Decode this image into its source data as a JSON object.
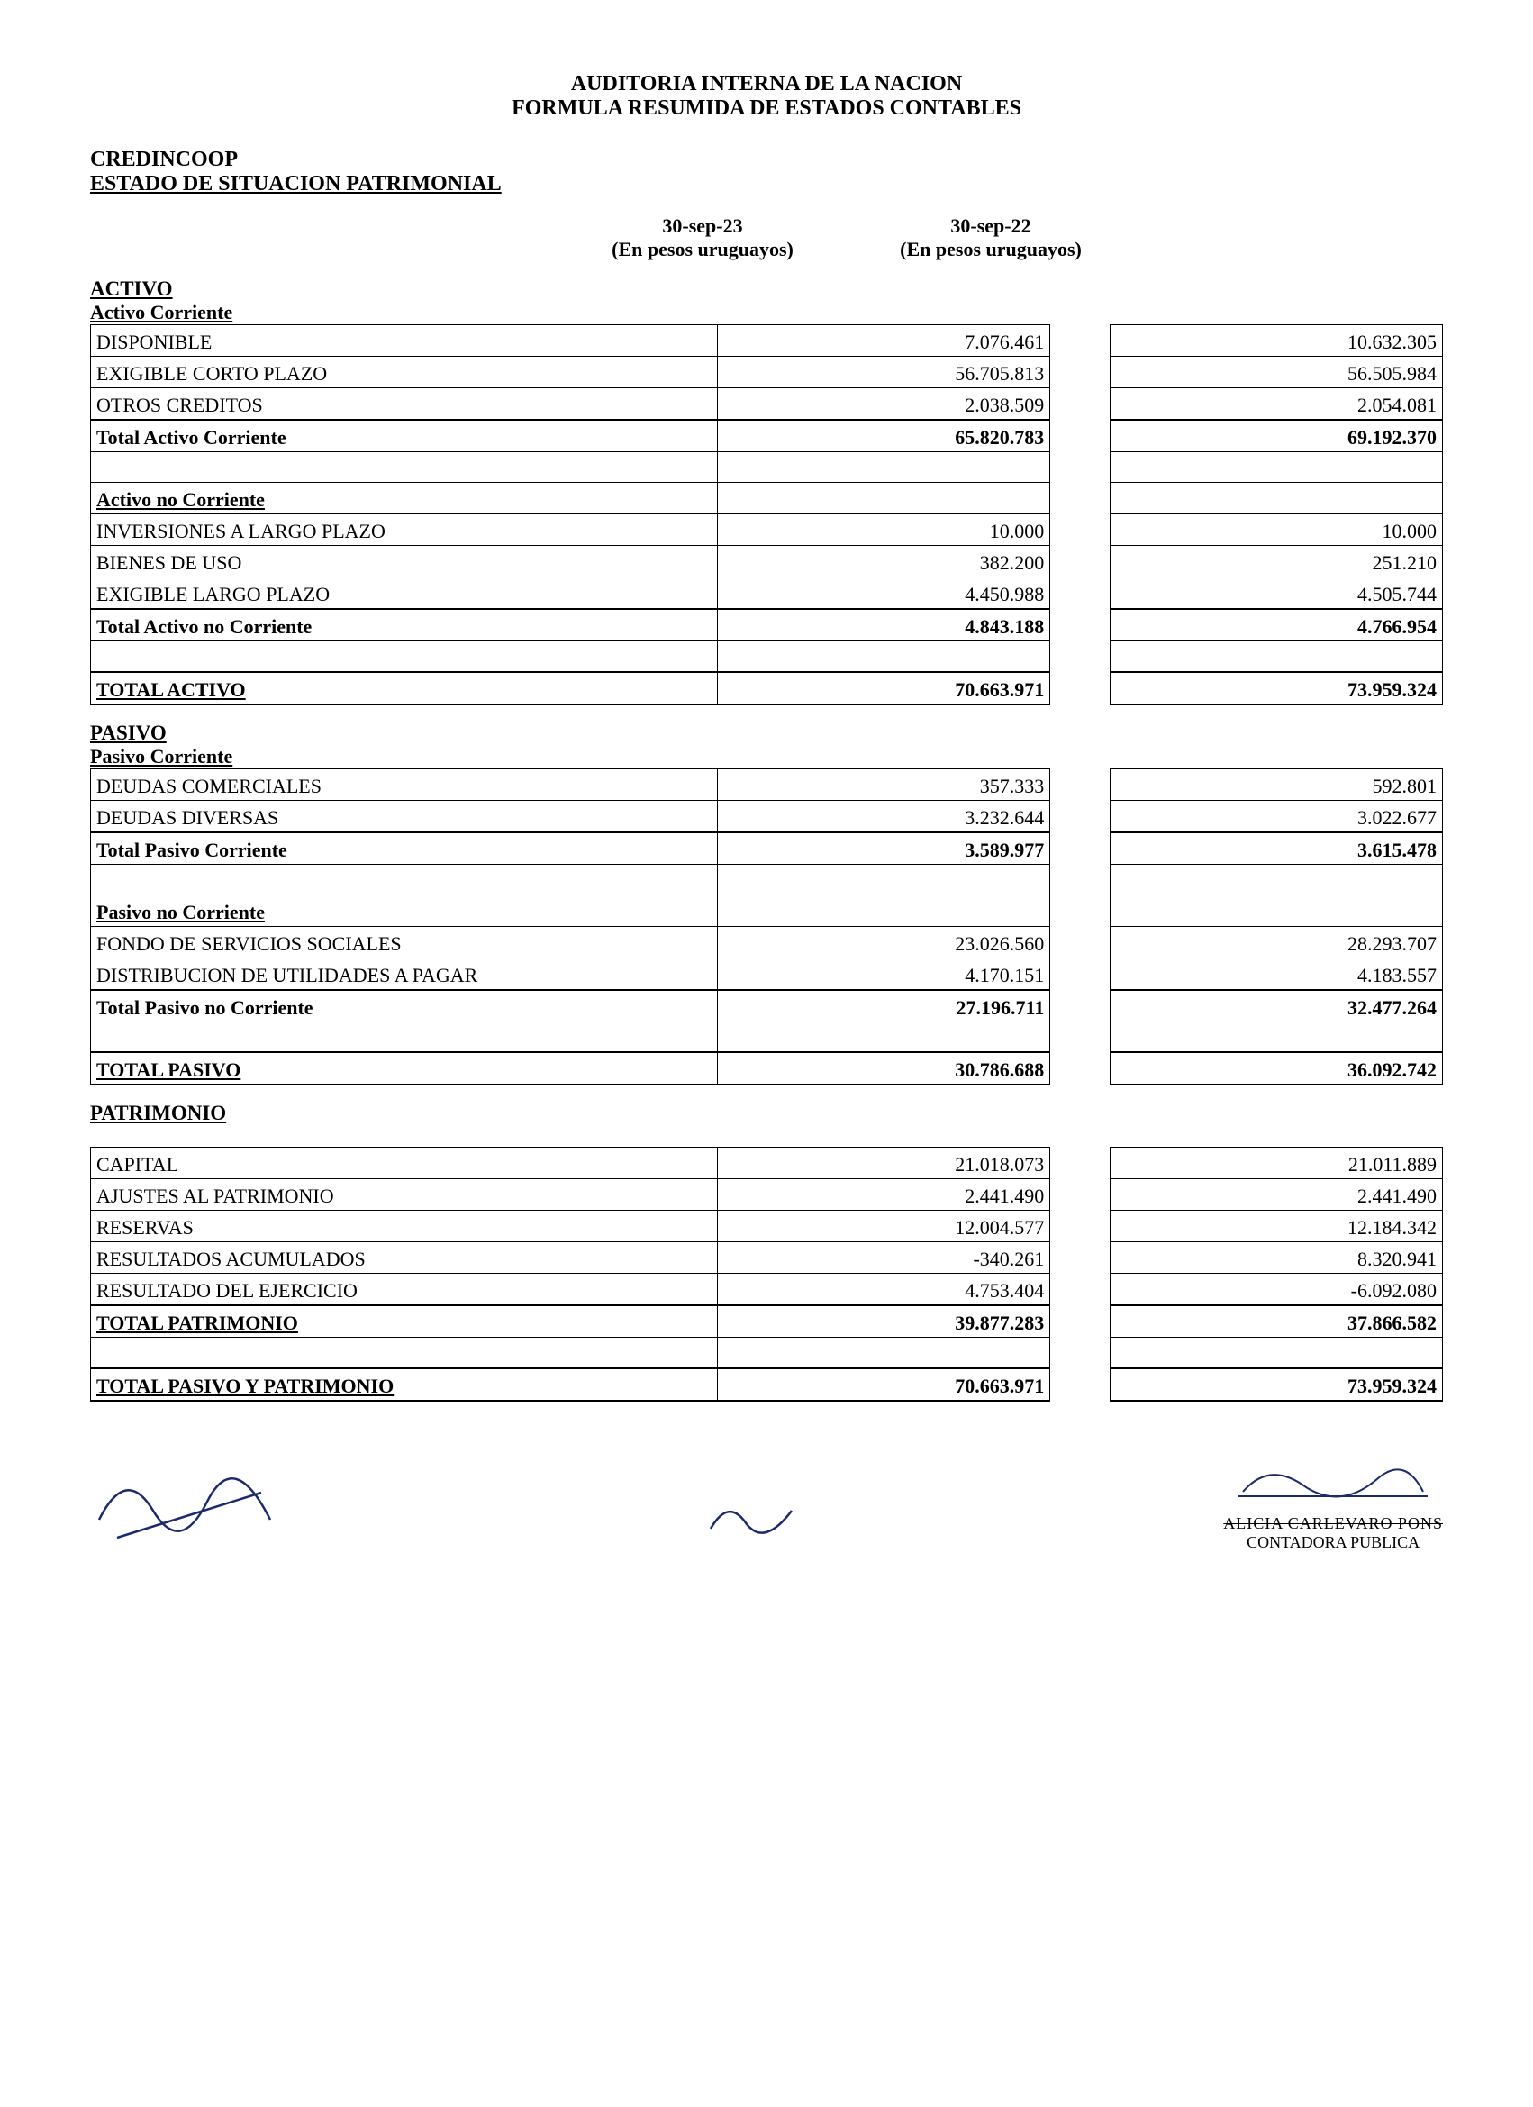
{
  "header": {
    "line1": "AUDITORIA INTERNA DE LA NACION",
    "line2": "FORMULA RESUMIDA DE ESTADOS CONTABLES"
  },
  "entity": "CREDINCOOP",
  "statement_title": "ESTADO DE SITUACION PATRIMONIAL",
  "columns": {
    "period1_date": "30-sep-23",
    "period1_unit": "(En pesos uruguayos)",
    "period2_date": "30-sep-22",
    "period2_unit": "(En pesos uruguayos)"
  },
  "activo": {
    "title": "ACTIVO",
    "corriente": {
      "title": "Activo Corriente",
      "rows": [
        {
          "label": "DISPONIBLE",
          "v1": "7.076.461",
          "v2": "10.632.305"
        },
        {
          "label": "EXIGIBLE CORTO PLAZO",
          "v1": "56.705.813",
          "v2": "56.505.984"
        },
        {
          "label": "OTROS CREDITOS",
          "v1": "2.038.509",
          "v2": "2.054.081"
        }
      ],
      "total": {
        "label": "Total Activo Corriente",
        "v1": "65.820.783",
        "v2": "69.192.370"
      }
    },
    "no_corriente": {
      "title": "Activo no Corriente",
      "rows": [
        {
          "label": "INVERSIONES A LARGO PLAZO",
          "v1": "10.000",
          "v2": "10.000"
        },
        {
          "label": "BIENES DE USO",
          "v1": "382.200",
          "v2": "251.210"
        },
        {
          "label": "EXIGIBLE LARGO PLAZO",
          "v1": "4.450.988",
          "v2": "4.505.744"
        }
      ],
      "total": {
        "label": "Total Activo no Corriente",
        "v1": "4.843.188",
        "v2": "4.766.954"
      }
    },
    "grand": {
      "label": "TOTAL ACTIVO",
      "v1": "70.663.971",
      "v2": "73.959.324"
    }
  },
  "pasivo": {
    "title": "PASIVO",
    "corriente": {
      "title": "Pasivo Corriente",
      "rows": [
        {
          "label": "DEUDAS COMERCIALES",
          "v1": "357.333",
          "v2": "592.801"
        },
        {
          "label": "DEUDAS DIVERSAS",
          "v1": "3.232.644",
          "v2": "3.022.677"
        }
      ],
      "total": {
        "label": "Total Pasivo Corriente",
        "v1": "3.589.977",
        "v2": "3.615.478"
      }
    },
    "no_corriente": {
      "title": "Pasivo no Corriente",
      "rows": [
        {
          "label": "FONDO DE SERVICIOS SOCIALES",
          "v1": "23.026.560",
          "v2": "28.293.707"
        },
        {
          "label": "DISTRIBUCION DE UTILIDADES A PAGAR",
          "v1": "4.170.151",
          "v2": "4.183.557"
        }
      ],
      "total": {
        "label": "Total Pasivo no Corriente",
        "v1": "27.196.711",
        "v2": "32.477.264"
      }
    },
    "grand": {
      "label": "TOTAL PASIVO",
      "v1": "30.786.688",
      "v2": "36.092.742"
    }
  },
  "patrimonio": {
    "title": "PATRIMONIO",
    "rows": [
      {
        "label": "CAPITAL",
        "v1": "21.018.073",
        "v2": "21.011.889"
      },
      {
        "label": "AJUSTES AL PATRIMONIO",
        "v1": "2.441.490",
        "v2": "2.441.490"
      },
      {
        "label": "RESERVAS",
        "v1": "12.004.577",
        "v2": "12.184.342"
      },
      {
        "label": "RESULTADOS ACUMULADOS",
        "v1": "-340.261",
        "v2": "8.320.941"
      },
      {
        "label": "RESULTADO DEL EJERCICIO",
        "v1": "4.753.404",
        "v2": "-6.092.080"
      }
    ],
    "total": {
      "label": "TOTAL PATRIMONIO",
      "v1": "39.877.283",
      "v2": "37.866.582"
    },
    "grand": {
      "label": "TOTAL PASIVO Y PATRIMONIO",
      "v1": "70.663.971",
      "v2": "73.959.324"
    }
  },
  "signature": {
    "name": "ALICIA CARLEVARO PONS",
    "title": "CONTADORA PUBLICA"
  }
}
